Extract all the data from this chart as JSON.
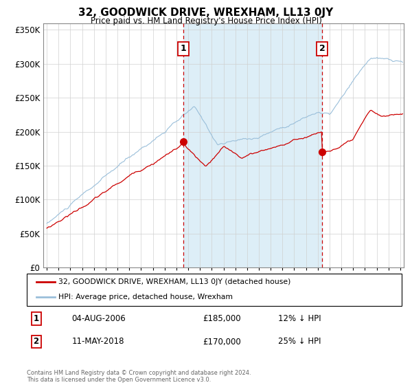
{
  "title": "32, GOODWICK DRIVE, WREXHAM, LL13 0JY",
  "subtitle": "Price paid vs. HM Land Registry's House Price Index (HPI)",
  "legend_line1": "32, GOODWICK DRIVE, WREXHAM, LL13 0JY (detached house)",
  "legend_line2": "HPI: Average price, detached house, Wrexham",
  "annotation1_label": "1",
  "annotation1_date": "04-AUG-2006",
  "annotation1_price": "£185,000",
  "annotation1_hpi": "12% ↓ HPI",
  "annotation2_label": "2",
  "annotation2_date": "11-MAY-2018",
  "annotation2_price": "£170,000",
  "annotation2_hpi": "25% ↓ HPI",
  "footer": "Contains HM Land Registry data © Crown copyright and database right 2024.\nThis data is licensed under the Open Government Licence v3.0.",
  "hpi_color": "#9abfda",
  "hpi_fill_color": "#ddeef7",
  "price_color": "#cc0000",
  "vline_color": "#cc0000",
  "marker_box_color": "#cc0000",
  "ylim": [
    0,
    360000
  ],
  "xlim_start": 1994.7,
  "xlim_end": 2025.3,
  "sale1_year": 2006.58,
  "sale2_year": 2018.36,
  "sale1_price": 185000,
  "sale2_price": 170000
}
